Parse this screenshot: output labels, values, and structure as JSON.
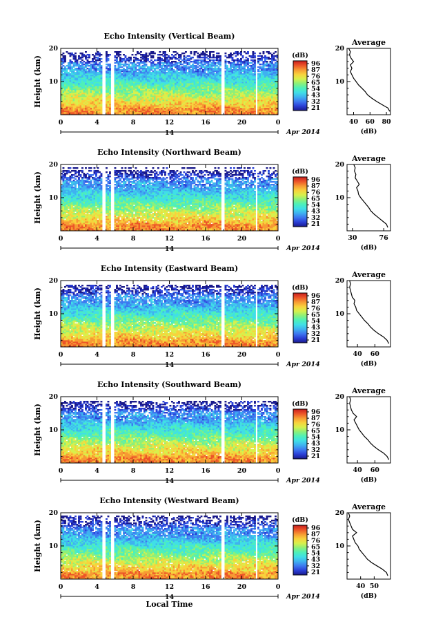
{
  "colormap": [
    "#1a1a8c",
    "#2a3fd6",
    "#3d78f0",
    "#3fb2f0",
    "#40dfe6",
    "#4ef0b8",
    "#8cf07a",
    "#d8f04c",
    "#f8d23c",
    "#f79a33",
    "#ec5428",
    "#c81e1e"
  ],
  "gap_color": "#ffffff",
  "chart_data": [
    {
      "type": "heatmap",
      "title": "Echo Intensity (Vertical Beam)",
      "ylabel": "Height (km)",
      "xlabel": "",
      "x_ticks": [
        "0",
        "4",
        "8",
        "12",
        "16",
        "20",
        "0"
      ],
      "y_ticks": [
        "10",
        "20"
      ],
      "xlim": [
        0,
        24
      ],
      "ylim": [
        0,
        20
      ],
      "date_day": "14",
      "date_month": "Apr 2014",
      "colorbar": {
        "unit": "(dB)",
        "ticks": [
          "96",
          "87",
          "76",
          "65",
          "54",
          "43",
          "32",
          "21"
        ]
      },
      "data_gaps_hours": [
        [
          4.6,
          4.9
        ],
        [
          5.6,
          5.9
        ],
        [
          17.7,
          18.0
        ],
        [
          21.5,
          21.8
        ]
      ],
      "top_km": 19.0,
      "profile": {
        "title": "Average",
        "xlabel": "(dB)",
        "x_ticks": [
          "40",
          "60",
          "80"
        ],
        "xlim": [
          32,
          85
        ],
        "heights_km": [
          1,
          2,
          3,
          4,
          5,
          6,
          7,
          8,
          9,
          10,
          11,
          12,
          13,
          14,
          15,
          16,
          17,
          18,
          19,
          20
        ],
        "values_db": [
          84,
          82,
          75,
          68,
          62,
          57,
          54,
          50,
          46,
          43,
          40,
          38,
          36,
          38,
          36,
          40,
          37,
          35,
          36,
          34
        ]
      }
    },
    {
      "type": "heatmap",
      "title": "Echo Intensity (Northward Beam)",
      "ylabel": "Height (km)",
      "xlabel": "",
      "x_ticks": [
        "0",
        "4",
        "8",
        "12",
        "16",
        "20",
        "0"
      ],
      "y_ticks": [
        "10",
        "20"
      ],
      "xlim": [
        0,
        24
      ],
      "ylim": [
        0,
        20
      ],
      "date_day": "14",
      "date_month": "Apr 2014",
      "colorbar": {
        "unit": "(dB)",
        "ticks": [
          "96",
          "87",
          "76",
          "65",
          "54",
          "43",
          "32",
          "21"
        ]
      },
      "data_gaps_hours": [
        [
          4.6,
          4.9
        ],
        [
          5.6,
          5.9
        ],
        [
          17.7,
          18.0
        ],
        [
          21.5,
          21.8
        ]
      ],
      "top_km": 18.0,
      "profile": {
        "title": "Average",
        "xlabel": "(dB)",
        "x_ticks": [
          "30",
          "76"
        ],
        "xlim": [
          22,
          86
        ],
        "heights_km": [
          1,
          2,
          3,
          4,
          5,
          6,
          7,
          8,
          9,
          10,
          11,
          12,
          13,
          14,
          15,
          16,
          17,
          18,
          19,
          20
        ],
        "values_db": [
          82,
          80,
          74,
          68,
          62,
          57,
          54,
          50,
          46,
          42,
          39,
          38,
          36,
          40,
          37,
          34,
          35,
          33,
          34,
          32
        ]
      }
    },
    {
      "type": "heatmap",
      "title": "Echo Intensity (Eastward Beam)",
      "ylabel": "Height (km)",
      "xlabel": "",
      "x_ticks": [
        "0",
        "4",
        "8",
        "12",
        "16",
        "20",
        "0"
      ],
      "y_ticks": [
        "10",
        "20"
      ],
      "xlim": [
        0,
        24
      ],
      "ylim": [
        0,
        20
      ],
      "date_day": "14",
      "date_month": "Apr 2014",
      "colorbar": {
        "unit": "(dB)",
        "ticks": [
          "96",
          "87",
          "76",
          "65",
          "54",
          "43",
          "32",
          "21"
        ]
      },
      "data_gaps_hours": [
        [
          4.6,
          4.9
        ],
        [
          5.6,
          5.9
        ],
        [
          17.7,
          18.0
        ],
        [
          21.5,
          21.8
        ]
      ],
      "top_km": 18.5,
      "profile": {
        "title": "Average",
        "xlabel": "(dB)",
        "x_ticks": [
          "40",
          "60"
        ],
        "xlim": [
          28,
          78
        ],
        "heights_km": [
          1,
          2,
          3,
          4,
          5,
          6,
          7,
          8,
          9,
          10,
          11,
          12,
          13,
          14,
          15,
          16,
          17,
          18,
          19,
          20
        ],
        "values_db": [
          76,
          74,
          70,
          64,
          59,
          55,
          52,
          48,
          45,
          42,
          39,
          38,
          36,
          37,
          34,
          33,
          32,
          31,
          32,
          31
        ]
      }
    },
    {
      "type": "heatmap",
      "title": "Echo Intensity (Southward Beam)",
      "ylabel": "Height (km)",
      "xlabel": "",
      "x_ticks": [
        "0",
        "4",
        "8",
        "12",
        "16",
        "20",
        "0"
      ],
      "y_ticks": [
        "10",
        "20"
      ],
      "xlim": [
        0,
        24
      ],
      "ylim": [
        0,
        20
      ],
      "date_day": "14",
      "date_month": "Apr 2014",
      "colorbar": {
        "unit": "(dB)",
        "ticks": [
          "96",
          "87",
          "76",
          "65",
          "54",
          "43",
          "32",
          "21"
        ]
      },
      "data_gaps_hours": [
        [
          4.6,
          4.9
        ],
        [
          5.6,
          5.9
        ],
        [
          17.7,
          18.0
        ],
        [
          21.5,
          21.8
        ]
      ],
      "top_km": 18.5,
      "profile": {
        "title": "Average",
        "xlabel": "(dB)",
        "x_ticks": [
          "40",
          "60"
        ],
        "xlim": [
          28,
          78
        ],
        "heights_km": [
          1,
          2,
          3,
          4,
          5,
          6,
          7,
          8,
          9,
          10,
          11,
          12,
          13,
          14,
          15,
          16,
          17,
          18,
          19,
          20
        ],
        "values_db": [
          76,
          74,
          70,
          64,
          59,
          55,
          52,
          48,
          45,
          42,
          40,
          38,
          36,
          39,
          35,
          33,
          32,
          31,
          32,
          31
        ]
      }
    },
    {
      "type": "heatmap",
      "title": "Echo Intensity (Westward Beam)",
      "ylabel": "Height (km)",
      "xlabel": "Local Time",
      "x_ticks": [
        "0",
        "4",
        "8",
        "12",
        "16",
        "20",
        "0"
      ],
      "y_ticks": [
        "10",
        "20"
      ],
      "xlim": [
        0,
        24
      ],
      "ylim": [
        0,
        20
      ],
      "date_day": "14",
      "date_month": "Apr 2014",
      "colorbar": {
        "unit": "(dB)",
        "ticks": [
          "96",
          "87",
          "76",
          "65",
          "54",
          "43",
          "32",
          "21"
        ]
      },
      "data_gaps_hours": [
        [
          4.6,
          4.9
        ],
        [
          5.6,
          5.9
        ],
        [
          17.7,
          18.0
        ],
        [
          21.5,
          21.8
        ]
      ],
      "top_km": 18.5,
      "profile": {
        "title": "Average",
        "xlabel": "(dB)",
        "x_ticks": [
          "40",
          "50"
        ],
        "xlim": [
          30,
          62
        ],
        "heights_km": [
          1,
          2,
          3,
          4,
          5,
          6,
          7,
          8,
          9,
          10,
          11,
          12,
          13,
          14,
          15,
          16,
          17,
          18,
          19,
          20
        ],
        "values_db": [
          60,
          59,
          56,
          52,
          48,
          45,
          43,
          41,
          39,
          38,
          36,
          35,
          34,
          37,
          34,
          33,
          32,
          31,
          32,
          31
        ]
      }
    }
  ]
}
